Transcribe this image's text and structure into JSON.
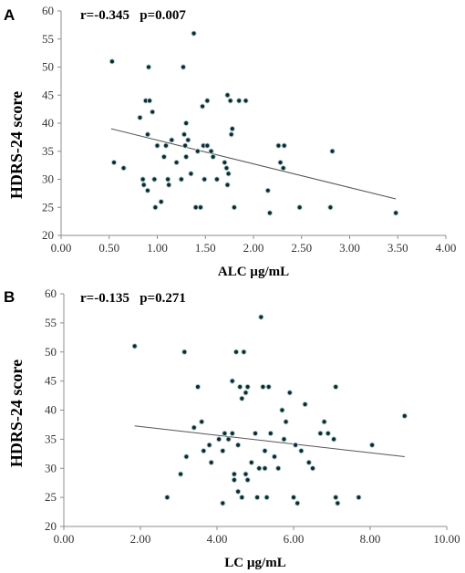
{
  "chart_data": [
    {
      "type": "scatter",
      "panel": "A",
      "annotation": "r=-0.345   p=0.007",
      "xlabel": "ALC µg/mL",
      "ylabel": "HDRS-24 score",
      "xlim": [
        0,
        4
      ],
      "ylim": [
        20,
        60
      ],
      "xticks": [
        "0.00",
        "0.50",
        "1.00",
        "1.50",
        "2.00",
        "2.50",
        "3.00",
        "3.50",
        "4.00"
      ],
      "yticks": [
        "20",
        "25",
        "30",
        "35",
        "40",
        "45",
        "50",
        "55",
        "60"
      ],
      "grid": false,
      "trendline": {
        "x": [
          0.52,
          3.48
        ],
        "y": [
          39.0,
          26.5
        ]
      },
      "points": [
        [
          0.53,
          51
        ],
        [
          0.55,
          33
        ],
        [
          0.65,
          32
        ],
        [
          0.82,
          41
        ],
        [
          0.85,
          30
        ],
        [
          0.86,
          29
        ],
        [
          0.88,
          44
        ],
        [
          0.9,
          38
        ],
        [
          0.9,
          28
        ],
        [
          0.91,
          50
        ],
        [
          0.92,
          44
        ],
        [
          0.95,
          42
        ],
        [
          0.97,
          30
        ],
        [
          0.98,
          25
        ],
        [
          1.0,
          36
        ],
        [
          1.04,
          26
        ],
        [
          1.07,
          34
        ],
        [
          1.09,
          36
        ],
        [
          1.11,
          30
        ],
        [
          1.12,
          29
        ],
        [
          1.15,
          37
        ],
        [
          1.2,
          33
        ],
        [
          1.25,
          30
        ],
        [
          1.27,
          50
        ],
        [
          1.28,
          38
        ],
        [
          1.29,
          36
        ],
        [
          1.3,
          40
        ],
        [
          1.3,
          34
        ],
        [
          1.32,
          37
        ],
        [
          1.35,
          31
        ],
        [
          1.38,
          56
        ],
        [
          1.4,
          25
        ],
        [
          1.42,
          35
        ],
        [
          1.45,
          25
        ],
        [
          1.47,
          43
        ],
        [
          1.48,
          36
        ],
        [
          1.49,
          30
        ],
        [
          1.52,
          44
        ],
        [
          1.52,
          36
        ],
        [
          1.56,
          35
        ],
        [
          1.58,
          34
        ],
        [
          1.62,
          30
        ],
        [
          1.7,
          33
        ],
        [
          1.72,
          32
        ],
        [
          1.73,
          45
        ],
        [
          1.73,
          29
        ],
        [
          1.74,
          31
        ],
        [
          1.76,
          44
        ],
        [
          1.77,
          38
        ],
        [
          1.78,
          39
        ],
        [
          1.8,
          25
        ],
        [
          1.85,
          44
        ],
        [
          1.92,
          44
        ],
        [
          2.15,
          28
        ],
        [
          2.17,
          24
        ],
        [
          2.26,
          36
        ],
        [
          2.28,
          33
        ],
        [
          2.31,
          32
        ],
        [
          2.32,
          36
        ],
        [
          2.48,
          25
        ],
        [
          2.8,
          25
        ],
        [
          2.82,
          35
        ],
        [
          3.48,
          24
        ]
      ]
    },
    {
      "type": "scatter",
      "panel": "B",
      "annotation": "r=-0.135   p=0.271",
      "xlabel": "LC µg/mL",
      "ylabel": "HDRS-24 score",
      "xlim": [
        0,
        10
      ],
      "ylim": [
        20,
        60
      ],
      "xticks": [
        "0.00",
        "2.00",
        "4.00",
        "6.00",
        "8.00",
        "10.00"
      ],
      "yticks": [
        "20",
        "25",
        "30",
        "35",
        "40",
        "45",
        "50",
        "55",
        "60"
      ],
      "grid": false,
      "trendline": {
        "x": [
          1.85,
          8.9
        ],
        "y": [
          37.3,
          32.0
        ]
      },
      "points": [
        [
          1.85,
          51
        ],
        [
          2.7,
          25
        ],
        [
          3.05,
          29
        ],
        [
          3.15,
          50
        ],
        [
          3.2,
          32
        ],
        [
          3.4,
          37
        ],
        [
          3.5,
          44
        ],
        [
          3.6,
          38
        ],
        [
          3.65,
          33
        ],
        [
          3.8,
          34
        ],
        [
          3.85,
          31
        ],
        [
          4.05,
          35
        ],
        [
          4.15,
          24
        ],
        [
          4.15,
          33
        ],
        [
          4.2,
          36
        ],
        [
          4.3,
          35
        ],
        [
          4.4,
          45
        ],
        [
          4.4,
          36
        ],
        [
          4.45,
          29
        ],
        [
          4.45,
          28
        ],
        [
          4.5,
          50
        ],
        [
          4.55,
          34
        ],
        [
          4.55,
          26
        ],
        [
          4.6,
          44
        ],
        [
          4.65,
          42
        ],
        [
          4.65,
          25
        ],
        [
          4.7,
          50
        ],
        [
          4.75,
          43
        ],
        [
          4.75,
          29
        ],
        [
          4.8,
          28
        ],
        [
          4.8,
          44
        ],
        [
          4.9,
          31
        ],
        [
          5.0,
          36
        ],
        [
          5.05,
          25
        ],
        [
          5.1,
          30
        ],
        [
          5.15,
          56
        ],
        [
          5.2,
          44
        ],
        [
          5.25,
          33
        ],
        [
          5.25,
          30
        ],
        [
          5.3,
          25
        ],
        [
          5.35,
          44
        ],
        [
          5.4,
          36
        ],
        [
          5.5,
          32
        ],
        [
          5.6,
          30
        ],
        [
          5.7,
          40
        ],
        [
          5.75,
          35
        ],
        [
          5.8,
          38
        ],
        [
          5.9,
          43
        ],
        [
          6.0,
          25
        ],
        [
          6.05,
          34
        ],
        [
          6.1,
          24
        ],
        [
          6.2,
          33
        ],
        [
          6.3,
          41
        ],
        [
          6.4,
          31
        ],
        [
          6.5,
          30
        ],
        [
          6.7,
          36
        ],
        [
          6.8,
          38
        ],
        [
          6.9,
          36
        ],
        [
          7.05,
          35
        ],
        [
          7.1,
          44
        ],
        [
          7.1,
          25
        ],
        [
          7.15,
          24
        ],
        [
          7.7,
          25
        ],
        [
          8.05,
          34
        ],
        [
          8.9,
          39
        ]
      ]
    }
  ]
}
